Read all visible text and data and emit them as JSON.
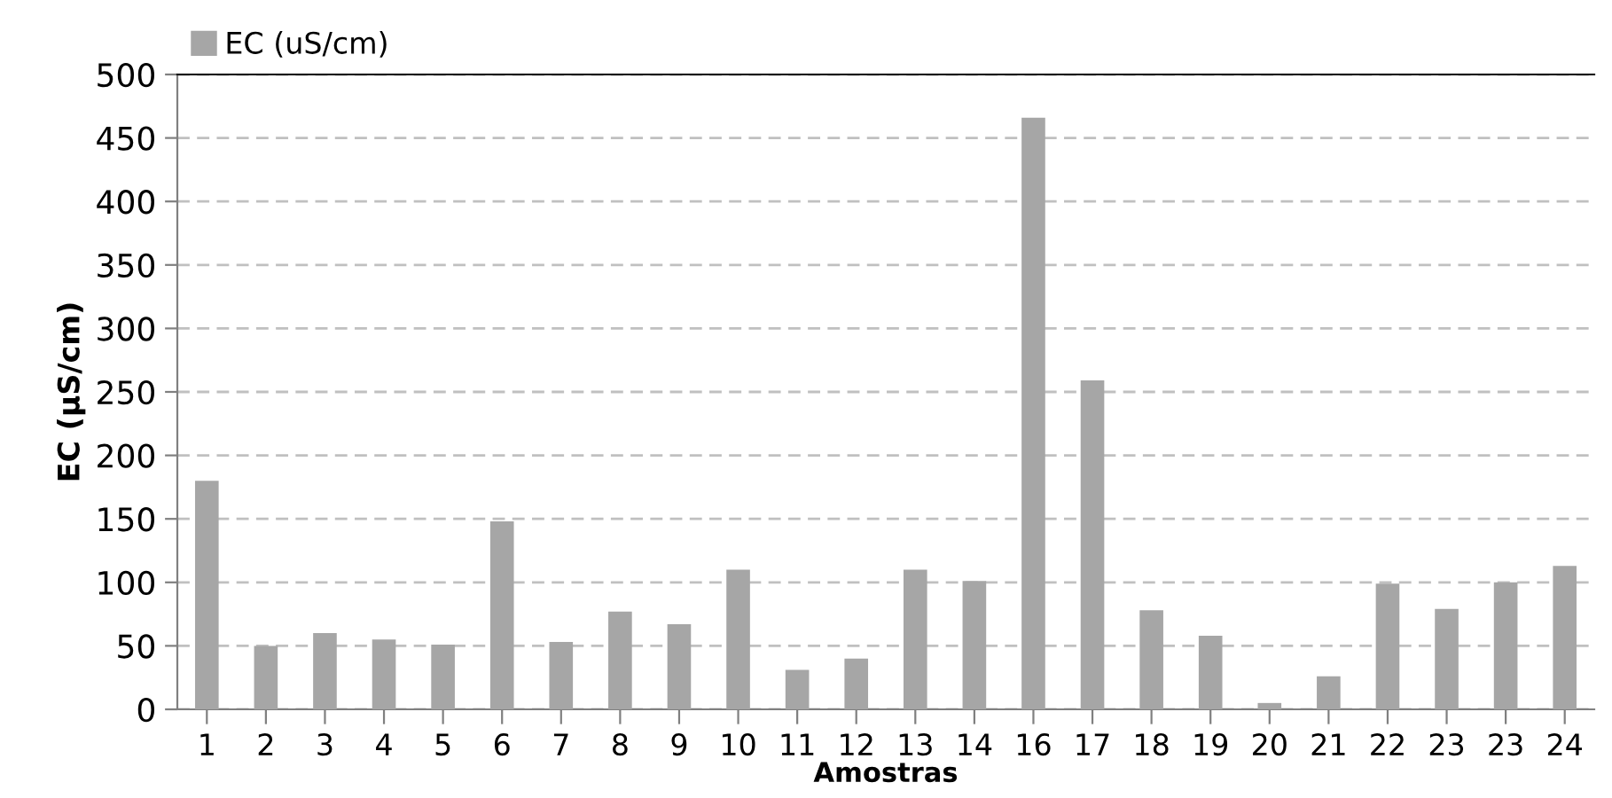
{
  "chart_data": {
    "type": "bar",
    "xlabel": "Amostras",
    "ylabel": "EC (µS/cm)",
    "categories": [
      "1",
      "2",
      "3",
      "4",
      "5",
      "6",
      "7",
      "8",
      "9",
      "10",
      "11",
      "12",
      "13",
      "14",
      "16",
      "17",
      "18",
      "19",
      "20",
      "21",
      "22",
      "23",
      "23",
      "24"
    ],
    "series": [
      {
        "name": "EC (uS/cm)",
        "color": "#a6a6a6",
        "values": [
          180,
          50,
          60,
          55,
          51,
          148,
          53,
          77,
          67,
          110,
          31,
          40,
          110,
          101,
          466,
          259,
          78,
          58,
          5,
          26,
          99,
          79,
          100,
          113
        ]
      }
    ],
    "ylim": [
      0,
      500
    ],
    "yticks": [
      0,
      50,
      100,
      150,
      200,
      250,
      300,
      350,
      400,
      450,
      500
    ],
    "grid": "y",
    "legend": "top left"
  }
}
